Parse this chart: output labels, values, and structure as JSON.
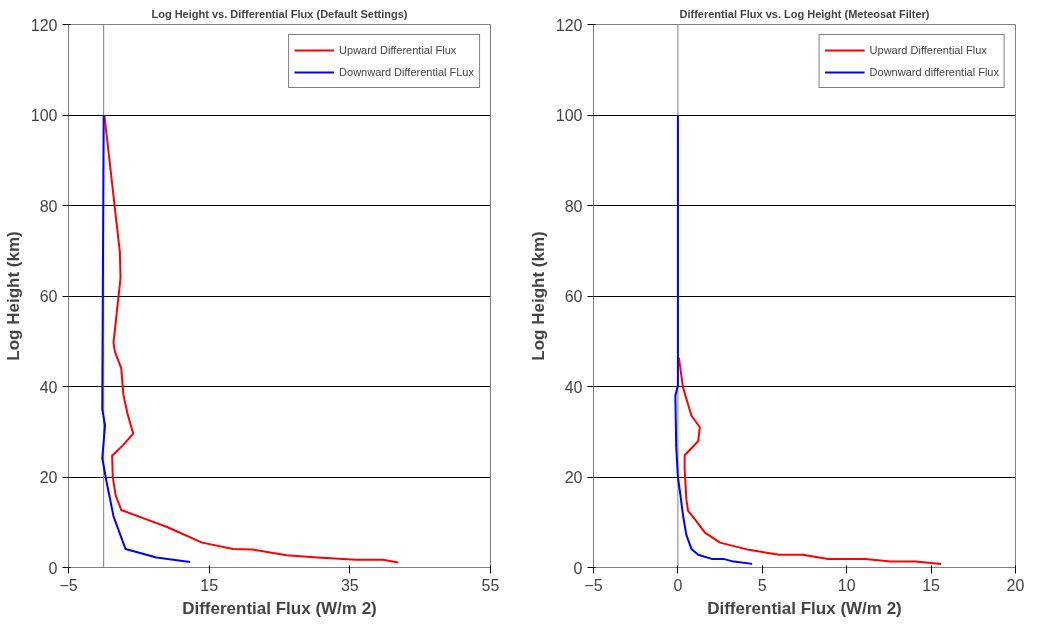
{
  "chart_data": [
    {
      "type": "line",
      "title": "Log Height vs. Differential Flux (Default Settings)",
      "xlabel": "Differential Flux (W/m 2)",
      "ylabel": "Log Height (km)",
      "xlim": [
        -5,
        55
      ],
      "xticks": [
        -5,
        15,
        35,
        55
      ],
      "ylim": [
        0,
        120
      ],
      "yticks": [
        0,
        20,
        40,
        60,
        80,
        100,
        120
      ],
      "grid": "y",
      "legend": "top right",
      "series": [
        {
          "name": "Upward Differential Flux",
          "color": "#ff0000",
          "x": [
            0.1,
            2.3,
            2.4,
            1.4,
            1.6,
            2.5,
            2.8,
            3.4,
            4.2,
            2.8,
            1.2,
            1.3,
            1.7,
            2.5,
            5.8,
            9.1,
            14,
            18.4,
            21.1,
            26,
            30.4,
            35.9,
            39.7,
            41.9
          ],
          "values": [
            100,
            69.7,
            64,
            49.7,
            47.7,
            44,
            38.2,
            33.9,
            29.6,
            27.1,
            24.7,
            19.9,
            16,
            12.7,
            10.8,
            8.9,
            5.5,
            4.1,
            4,
            2.7,
            2.2,
            1.7,
            1.7,
            1.1
          ]
        },
        {
          "name": "Downward Differential FLux",
          "color": "#0000ff",
          "x": [
            0,
            -0.2,
            0.2,
            -0.2,
            0.4,
            0.9,
            1.4,
            2.3,
            3.1,
            7.5,
            12.3
          ],
          "values": [
            100,
            35,
            31.4,
            24.2,
            19,
            15.2,
            11.3,
            7.5,
            4.1,
            2.2,
            1.2
          ]
        }
      ]
    },
    {
      "type": "line",
      "title": "Differential Flux vs. Log Height (Meteosat Filter)",
      "xlabel": "Differential Flux (W/m 2)",
      "ylabel": "Log Height (km)",
      "xlim": [
        -5,
        20
      ],
      "xticks": [
        -5,
        0,
        5,
        10,
        15,
        20
      ],
      "ylim": [
        0,
        120
      ],
      "yticks": [
        0,
        20,
        40,
        60,
        80,
        100,
        120
      ],
      "grid": "y",
      "legend": "top right",
      "series": [
        {
          "name": "Upward Differential Flux",
          "color": "#ff0000",
          "x": [
            0.06,
            0.3,
            0.8,
            1.3,
            1.2,
            0.4,
            0.4,
            0.5,
            0.6,
            1.0,
            1.6,
            2.5,
            4.2,
            6.0,
            7.4,
            8.9,
            11.1,
            12.6,
            14.1,
            15.6
          ],
          "values": [
            46.4,
            39.8,
            33.6,
            31,
            27.9,
            24.8,
            21.7,
            15.1,
            12.5,
            10.7,
            7.7,
            5.5,
            3.9,
            2.8,
            2.8,
            1.9,
            1.9,
            1.3,
            1.3,
            0.8
          ]
        },
        {
          "name": "Downward differential Flux",
          "color": "#0000ff",
          "x": [
            0,
            0,
            -0.15,
            -0.1,
            0,
            0.15,
            0.3,
            0.5,
            0.8,
            1.2,
            2.0,
            2.7,
            3.3,
            4.4
          ],
          "values": [
            100,
            40.2,
            38,
            26.6,
            20,
            16,
            11.6,
            7.2,
            4.1,
            2.8,
            1.9,
            1.9,
            1.3,
            0.8
          ]
        }
      ]
    }
  ]
}
